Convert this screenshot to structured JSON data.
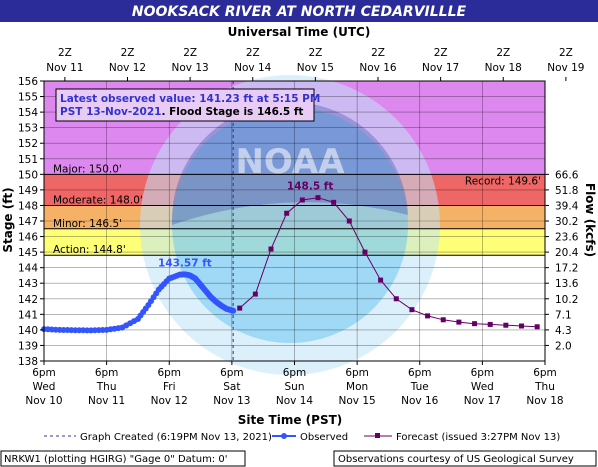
{
  "chart_data": {
    "type": "line",
    "title": "NOOKSACK RIVER AT NORTH CEDARVILLLE",
    "top_axis_title": "Universal Time (UTC)",
    "top_ticks": [
      {
        "l1": "2Z",
        "l2": "Nov 11"
      },
      {
        "l1": "2Z",
        "l2": "Nov 12"
      },
      {
        "l1": "2Z",
        "l2": "Nov 13"
      },
      {
        "l1": "2Z",
        "l2": "Nov 14"
      },
      {
        "l1": "2Z",
        "l2": "Nov 15"
      },
      {
        "l1": "2Z",
        "l2": "Nov 16"
      },
      {
        "l1": "2Z",
        "l2": "Nov 17"
      },
      {
        "l1": "2Z",
        "l2": "Nov 18"
      },
      {
        "l1": "2Z",
        "l2": "Nov 19"
      }
    ],
    "xlabel": "Site Time (PST)",
    "x_unit": "hours since 6pm Nov 10 (PST)",
    "xlim": [
      0,
      192
    ],
    "bottom_ticks": [
      {
        "l1": "6pm",
        "l2": "Wed",
        "l3": "Nov 10"
      },
      {
        "l1": "6pm",
        "l2": "Thu",
        "l3": "Nov 11"
      },
      {
        "l1": "6pm",
        "l2": "Fri",
        "l3": "Nov 12"
      },
      {
        "l1": "6pm",
        "l2": "Sat",
        "l3": "Nov 13"
      },
      {
        "l1": "6pm",
        "l2": "Sun",
        "l3": "Nov 14"
      },
      {
        "l1": "6pm",
        "l2": "Mon",
        "l3": "Nov 15"
      },
      {
        "l1": "6pm",
        "l2": "Tue",
        "l3": "Nov 16"
      },
      {
        "l1": "6pm",
        "l2": "Wed",
        "l3": "Nov 17"
      },
      {
        "l1": "6pm",
        "l2": "Thu",
        "l3": "Nov 18"
      }
    ],
    "ylabel": "Stage (ft)",
    "ylim": [
      138,
      156
    ],
    "y_ticks": [
      138,
      139,
      140,
      141,
      142,
      143,
      144,
      145,
      146,
      147,
      148,
      149,
      150,
      151,
      152,
      153,
      154,
      155,
      156
    ],
    "y2label": "Flow (kcfs)",
    "y2_ticks": [
      {
        "stage": 150,
        "label": "66.6"
      },
      {
        "stage": 149,
        "label": "51.8"
      },
      {
        "stage": 148,
        "label": "39.4"
      },
      {
        "stage": 147,
        "label": "30.2"
      },
      {
        "stage": 146,
        "label": "23.6"
      },
      {
        "stage": 145,
        "label": "20.4"
      },
      {
        "stage": 144,
        "label": "17.2"
      },
      {
        "stage": 143,
        "label": "13.6"
      },
      {
        "stage": 142,
        "label": "10.2"
      },
      {
        "stage": 141,
        "label": "7.1"
      },
      {
        "stage": 140,
        "label": "4.3"
      },
      {
        "stage": 139,
        "label": "2.0"
      }
    ],
    "flood_categories": [
      {
        "name": "Major",
        "label": "Major: 150.0'",
        "from": 150.0,
        "to": 156,
        "color": "#dd88ee"
      },
      {
        "name": "Moderate",
        "label": "Moderate: 148.0'",
        "from": 148.0,
        "to": 150.0,
        "color": "#ee6666"
      },
      {
        "name": "Minor",
        "label": "Minor: 146.5'",
        "from": 146.5,
        "to": 148.0,
        "color": "#f5b266"
      },
      {
        "name": "Action",
        "label": "Action: 144.8'",
        "from": 144.8,
        "to": 146.5,
        "color": "#ffff77"
      }
    ],
    "record": {
      "label": "Record: 149.6'",
      "value": 149.6
    },
    "graph_created_x": 72.5,
    "series": [
      {
        "name": "Observed",
        "color": "#3355ff",
        "peak_label": "143.57 ft",
        "peak": {
          "x": 54,
          "y": 143.57
        },
        "points": [
          [
            0,
            140.05
          ],
          [
            6,
            140.0
          ],
          [
            12,
            139.98
          ],
          [
            18,
            139.97
          ],
          [
            24,
            140.0
          ],
          [
            30,
            140.15
          ],
          [
            36,
            140.7
          ],
          [
            40,
            141.6
          ],
          [
            44,
            142.6
          ],
          [
            48,
            143.3
          ],
          [
            52,
            143.55
          ],
          [
            54,
            143.57
          ],
          [
            56,
            143.5
          ],
          [
            58,
            143.3
          ],
          [
            60,
            142.9
          ],
          [
            62,
            142.5
          ],
          [
            64,
            142.1
          ],
          [
            66,
            141.8
          ],
          [
            68,
            141.55
          ],
          [
            70,
            141.35
          ],
          [
            72,
            141.25
          ],
          [
            72.5,
            141.23
          ]
        ]
      },
      {
        "name": "Forecast",
        "color": "#660066",
        "peak_label": "148.5 ft",
        "peak": {
          "x": 102,
          "y": 148.5
        },
        "points": [
          [
            75,
            141.4
          ],
          [
            81,
            142.3
          ],
          [
            87,
            145.2
          ],
          [
            93,
            147.5
          ],
          [
            99,
            148.35
          ],
          [
            105,
            148.5
          ],
          [
            111,
            148.2
          ],
          [
            117,
            147.0
          ],
          [
            123,
            145.0
          ],
          [
            129,
            143.2
          ],
          [
            135,
            142.0
          ],
          [
            141,
            141.3
          ],
          [
            147,
            140.9
          ],
          [
            153,
            140.65
          ],
          [
            159,
            140.5
          ],
          [
            165,
            140.4
          ],
          [
            171,
            140.35
          ],
          [
            177,
            140.3
          ],
          [
            183,
            140.25
          ],
          [
            189,
            140.2
          ]
        ]
      }
    ],
    "info_box_line1": "Latest observed value: 141.23 ft at 5:15 PM",
    "info_box_line2a": "PST 13-Nov-2021",
    "info_box_line2b": ". Flood Stage is 146.5 ft",
    "watermark_text": "NOAA",
    "legend": {
      "graph_created": "Graph Created (6:19PM Nov 13, 2021)",
      "observed": "Observed",
      "forecast": "Forecast (issued 3:27PM Nov 13)"
    },
    "footer_left": "NRKW1 (plotting HGIRG) \"Gage 0\" Datum: 0'",
    "footer_right": "Observations courtesy of US Geological Survey",
    "colors": {
      "title_bg": "#2b2b99",
      "title_text": "#ffffff",
      "grid": "#000000",
      "below_action": "#ffffff"
    }
  }
}
